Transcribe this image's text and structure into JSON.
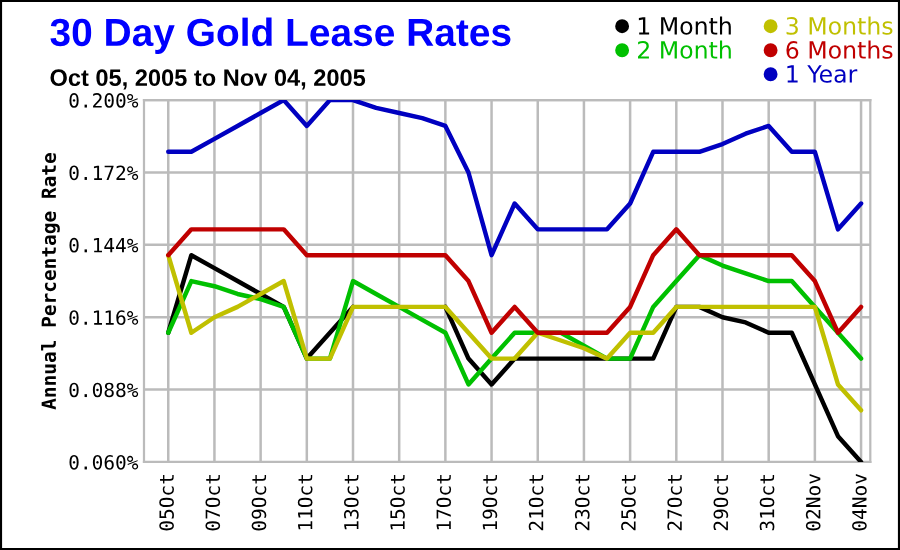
{
  "chart_data": {
    "type": "line",
    "title": "30 Day Gold Lease Rates",
    "subtitle": "Oct 05, 2005 to Nov 04, 2005",
    "ylabel": "Annual Percentage Rate",
    "categories": [
      "05Oct",
      null,
      "07Oct",
      null,
      "09Oct",
      null,
      "11Oct",
      null,
      "13Oct",
      null,
      "15Oct",
      null,
      "17Oct",
      null,
      "19Oct",
      null,
      "21Oct",
      null,
      "23Oct",
      null,
      "25Oct",
      null,
      "27Oct",
      null,
      "29Oct",
      null,
      "31Oct",
      null,
      "02Nov",
      null,
      "04Nov"
    ],
    "series": [
      {
        "name": "1 Month",
        "color": "#000000",
        "values": [
          0.11,
          0.14,
          0.135,
          0.13,
          0.125,
          0.12,
          0.1,
          0.11,
          0.12,
          null,
          null,
          null,
          0.12,
          0.1,
          0.09,
          0.1,
          0.1,
          0.1,
          0.1,
          0.1,
          0.1,
          0.1,
          0.12,
          0.12,
          0.116,
          0.114,
          0.11,
          0.11,
          0.09,
          0.07,
          0.06
        ]
      },
      {
        "name": "2 Month",
        "color": "#00c000",
        "values": [
          0.11,
          0.13,
          0.128,
          0.125,
          0.123,
          0.12,
          0.1,
          0.1,
          0.13,
          0.125,
          0.12,
          0.115,
          0.11,
          0.09,
          0.1,
          0.11,
          0.11,
          0.11,
          0.105,
          0.1,
          0.1,
          0.12,
          0.13,
          0.14,
          0.136,
          0.133,
          0.13,
          0.13,
          0.12,
          0.11,
          0.1
        ]
      },
      {
        "name": "3 Months",
        "color": "#c0c000",
        "values": [
          0.14,
          0.11,
          0.116,
          0.12,
          0.125,
          0.13,
          0.1,
          0.1,
          0.12,
          0.12,
          0.12,
          0.12,
          0.12,
          0.11,
          0.1,
          0.1,
          0.11,
          0.107,
          0.104,
          0.1,
          0.11,
          0.11,
          0.12,
          0.12,
          0.12,
          0.12,
          0.12,
          0.12,
          0.12,
          0.09,
          0.08
        ]
      },
      {
        "name": "6 Months",
        "color": "#c00000",
        "values": [
          0.14,
          0.15,
          0.15,
          0.15,
          0.15,
          0.15,
          0.14,
          0.14,
          0.14,
          0.14,
          0.14,
          0.14,
          0.14,
          0.13,
          0.11,
          0.12,
          0.11,
          0.11,
          0.11,
          0.11,
          0.12,
          0.14,
          0.15,
          0.14,
          0.14,
          0.14,
          0.14,
          0.14,
          0.13,
          0.11,
          0.12
        ]
      },
      {
        "name": "1 Year",
        "color": "#0000c0",
        "values": [
          0.18,
          0.18,
          0.185,
          0.19,
          0.195,
          0.2,
          0.19,
          0.2,
          0.2,
          0.197,
          0.195,
          0.193,
          0.19,
          0.172,
          0.14,
          0.16,
          0.15,
          0.15,
          0.15,
          0.15,
          0.16,
          0.18,
          0.18,
          0.18,
          0.183,
          0.187,
          0.19,
          0.18,
          0.18,
          0.15,
          0.16
        ]
      }
    ],
    "ylim": [
      0.06,
      0.2
    ],
    "yticks": [
      {
        "value": 0.06,
        "label": "0.060%"
      },
      {
        "value": 0.088,
        "label": "0.088%"
      },
      {
        "value": 0.116,
        "label": "0.116%"
      },
      {
        "value": 0.144,
        "label": "0.144%"
      },
      {
        "value": 0.172,
        "label": "0.172%"
      },
      {
        "value": 0.2,
        "label": "0.200%"
      }
    ],
    "grid": true,
    "legend": "top right",
    "line_style": "solid"
  }
}
